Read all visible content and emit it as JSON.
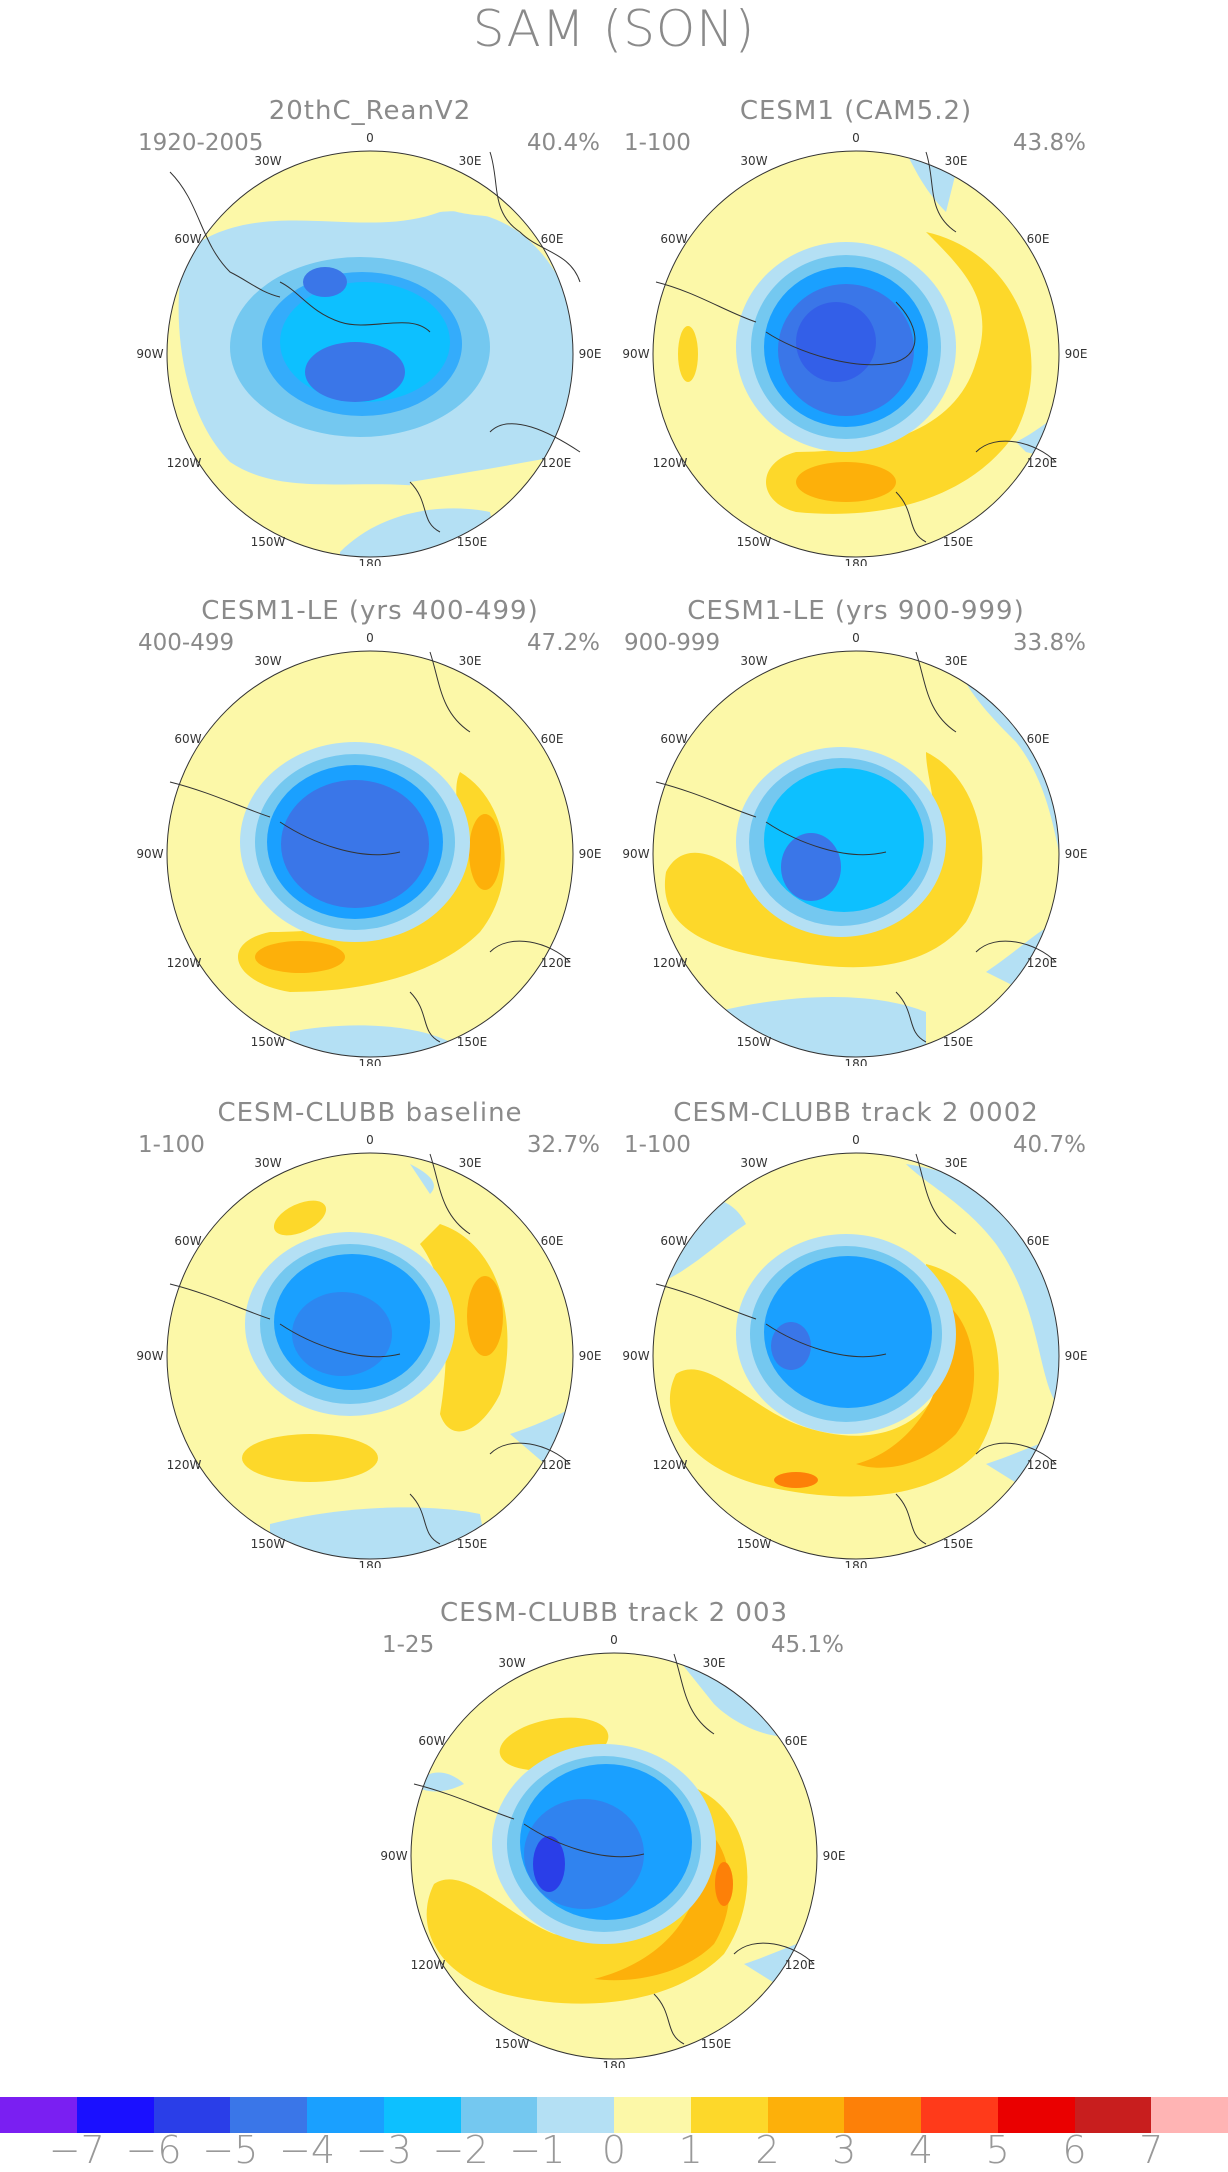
{
  "title": "SAM (SON)",
  "panels": [
    {
      "title": "20thC_ReanV2",
      "period": "1920-2005",
      "percent": "40.4%"
    },
    {
      "title": "CESM1 (CAM5.2)",
      "period": "1-100",
      "percent": "43.8%"
    },
    {
      "title": "CESM1-LE (yrs 400-499)",
      "period": "400-499",
      "percent": "47.2%"
    },
    {
      "title": "CESM1-LE (yrs 900-999)",
      "period": "900-999",
      "percent": "33.8%"
    },
    {
      "title": "CESM-CLUBB baseline",
      "period": "1-100",
      "percent": "32.7%"
    },
    {
      "title": "CESM-CLUBB track 2 0002",
      "period": "1-100",
      "percent": "40.7%"
    },
    {
      "title": "CESM-CLUBB track 2 003",
      "period": "1-25",
      "percent": "45.1%"
    }
  ],
  "lon_labels": {
    "l0": "0",
    "l30e": "30E",
    "l60e": "60E",
    "l90e": "90E",
    "l120e": "120E",
    "l150e": "150E",
    "l180": "180",
    "l150w": "150W",
    "l120w": "120W",
    "l90w": "90W",
    "l60w": "60W",
    "l30w": "30W"
  },
  "colorbar": {
    "colors": [
      "#7a1ff2",
      "#1a10ff",
      "#2a3ee8",
      "#3a76e8",
      "#1aa0ff",
      "#0dc0ff",
      "#74c8f0",
      "#b4e0f4",
      "#fcf8a8",
      "#fdd82a",
      "#fdb00a",
      "#fd8008",
      "#ff3a1a",
      "#ea0000",
      "#c81e1e",
      "#ffb4b4"
    ],
    "labels": [
      "-7",
      "-6",
      "-5",
      "-4",
      "-3",
      "-2",
      "-1",
      "0",
      "1",
      "2",
      "3",
      "4",
      "5",
      "6",
      "7"
    ]
  },
  "colors": {
    "yellow": "#fcf8a8",
    "light_blue": "#b4e0f4"
  }
}
